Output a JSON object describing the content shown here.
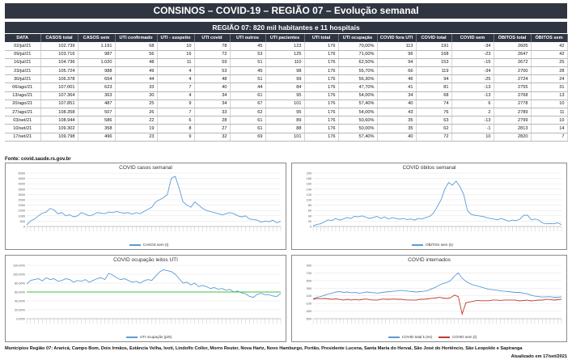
{
  "header": {
    "title": "CONSINOS – COVID-19 – REGIÃO 07 – Evolução semanal",
    "subtitle": "REGIÃO 07: 820 mil habitantes e 11 hospitais"
  },
  "table": {
    "columns": [
      "DATA",
      "CASOS total",
      "CASOS sem",
      "UTI confirmado",
      "UTI - suspeito",
      "UTI covid",
      "UTI outros",
      "UTI pacientes",
      "UTI total",
      "UTI ocupação",
      "COVID fora UTI",
      "COVID total",
      "COVID sem",
      "ÓBITOS total",
      "ÓBITOS sem"
    ],
    "rows": [
      [
        "02/jul/21",
        "102.739",
        "1.191",
        "68",
        "10",
        "78",
        "45",
        "123",
        "176",
        "70,00%",
        "113",
        "191",
        "-34",
        "2605",
        "42"
      ],
      [
        "09/jul/21",
        "103.716",
        "987",
        "56",
        "16",
        "72",
        "53",
        "125",
        "176",
        "71,00%",
        "96",
        "168",
        "-23",
        "2647",
        "42"
      ],
      [
        "16/jul/21",
        "104.736",
        "1.020",
        "48",
        "11",
        "59",
        "51",
        "110",
        "176",
        "62,50%",
        "94",
        "153",
        "-15",
        "2672",
        "25"
      ],
      [
        "23/jul/21",
        "105.724",
        "988",
        "49",
        "4",
        "53",
        "45",
        "98",
        "176",
        "55,70%",
        "66",
        "119",
        "-34",
        "2700",
        "28"
      ],
      [
        "30/jul/21",
        "106.378",
        "654",
        "44",
        "4",
        "48",
        "51",
        "99",
        "176",
        "56,30%",
        "46",
        "94",
        "-25",
        "2724",
        "24"
      ],
      [
        "06/ago/21",
        "107.001",
        "623",
        "33",
        "7",
        "40",
        "44",
        "84",
        "176",
        "47,70%",
        "41",
        "81",
        "-13",
        "2755",
        "31"
      ],
      [
        "13/ago/21",
        "107.364",
        "363",
        "30",
        "4",
        "34",
        "61",
        "95",
        "176",
        "54,00%",
        "34",
        "68",
        "-13",
        "2768",
        "13"
      ],
      [
        "20/ago/21",
        "107.851",
        "487",
        "25",
        "9",
        "34",
        "67",
        "101",
        "176",
        "57,40%",
        "40",
        "74",
        "6",
        "2778",
        "10"
      ],
      [
        "27/ago/21",
        "108.358",
        "507",
        "26",
        "7",
        "33",
        "62",
        "95",
        "176",
        "54,00%",
        "43",
        "76",
        "2",
        "2789",
        "11"
      ],
      [
        "03/set/21",
        "108.944",
        "586",
        "22",
        "6",
        "28",
        "61",
        "89",
        "176",
        "50,60%",
        "35",
        "63",
        "-13",
        "2799",
        "10"
      ],
      [
        "10/set/21",
        "109.302",
        "358",
        "19",
        "8",
        "27",
        "61",
        "88",
        "176",
        "50,00%",
        "35",
        "62",
        "-1",
        "2813",
        "14"
      ],
      [
        "17/set/21",
        "109.798",
        "496",
        "23",
        "9",
        "32",
        "69",
        "101",
        "176",
        "57,40%",
        "40",
        "72",
        "10",
        "2820",
        "7"
      ]
    ]
  },
  "source": "Fonte: covid.saude.rs.gov.br",
  "chart_data": [
    {
      "type": "line",
      "title": "COVID casos semanal",
      "ylim": [
        0,
        5000
      ],
      "yticks": [
        "0",
        "500",
        "1000",
        "1500",
        "2000",
        "2500",
        "3000",
        "3500",
        "4000",
        "4500",
        "5000"
      ],
      "series": [
        {
          "name": "CASOS sem (t)",
          "color": "#5b9bd5",
          "values": [
            150,
            520,
            700,
            1000,
            1250,
            1350,
            1700,
            1550,
            1200,
            1300,
            1000,
            1100,
            900,
            1000,
            1300,
            1150,
            1000,
            1100,
            1300,
            1250,
            1200,
            1350,
            1300,
            1400,
            1300,
            1250,
            1300,
            1150,
            1300,
            1200,
            1400,
            1600,
            1800,
            2300,
            2500,
            2700,
            3000,
            4500,
            4700,
            3600,
            2300,
            2000,
            1800,
            2300,
            2000,
            1700,
            1500,
            1400,
            1300,
            1200,
            1100,
            1200,
            1300,
            1200,
            1000,
            900,
            1000,
            700,
            650,
            600,
            400,
            500,
            450,
            580,
            350,
            500
          ]
        }
      ]
    },
    {
      "type": "line",
      "title": "COVID óbitos semanal",
      "ylim": [
        0,
        200
      ],
      "yticks": [
        "0",
        "20",
        "40",
        "60",
        "80",
        "100",
        "120",
        "140",
        "160",
        "180",
        "200"
      ],
      "series": [
        {
          "name": "ÓBITOS sem (s)",
          "color": "#5b9bd5",
          "values": [
            2,
            8,
            10,
            18,
            25,
            22,
            30,
            24,
            28,
            34,
            30,
            38,
            36,
            40,
            35,
            30,
            34,
            38,
            30,
            36,
            28,
            33,
            30,
            27,
            30,
            26,
            28,
            24,
            30,
            28,
            34,
            38,
            50,
            75,
            100,
            140,
            165,
            155,
            170,
            150,
            120,
            60,
            45,
            42,
            40,
            38,
            34,
            30,
            28,
            25,
            30,
            25,
            20,
            24,
            22,
            28,
            42,
            42,
            25,
            28,
            24,
            13,
            10,
            11,
            10,
            14,
            7
          ]
        }
      ]
    },
    {
      "type": "line",
      "title": "COVID ocupação leitos UTI",
      "ylim": [
        0,
        1.2
      ],
      "yticks": [
        "0,00%",
        "20,00%",
        "40,00%",
        "60,00%",
        "80,00%",
        "100,00%",
        "120,00%"
      ],
      "series": [
        {
          "name": "UTI ocupação (p/6)",
          "color": "#5b9bd5",
          "values": [
            0.78,
            0.86,
            0.88,
            0.9,
            0.85,
            0.92,
            0.88,
            0.9,
            0.84,
            0.86,
            0.9,
            0.88,
            0.82,
            0.86,
            0.84,
            0.88,
            0.82,
            0.86,
            0.9,
            0.92,
            0.88,
            1.02,
            0.98,
            0.92,
            0.88,
            0.9,
            0.86,
            0.82,
            0.84,
            0.8,
            0.85,
            0.88,
            0.86,
            0.96,
            1.05,
            1.1,
            1.08,
            1.06,
            1.0,
            0.9,
            0.8,
            0.82,
            0.76,
            0.8,
            0.72,
            0.75,
            0.72,
            0.68,
            0.7,
            0.66,
            0.68,
            0.64,
            0.66,
            0.6,
            0.62,
            0.58,
            0.56,
            0.5,
            0.48,
            0.55,
            0.57,
            0.54,
            0.54,
            0.51,
            0.5,
            0.57
          ]
        },
        {
          "name": "",
          "color": "#3fbf3f",
          "values": [
            0.6,
            0.6
          ]
        }
      ]
    },
    {
      "type": "line",
      "title": "COVID internados",
      "ylim": [
        -500,
        900
      ],
      "yticks": [
        "-500",
        "-300",
        "-100",
        "100",
        "300",
        "500",
        "700",
        "900"
      ],
      "series": [
        {
          "name": "COVID total k (es)",
          "color": "#5b9bd5",
          "values": [
            20,
            60,
            80,
            120,
            150,
            170,
            200,
            210,
            190,
            200,
            180,
            190,
            170,
            180,
            200,
            190,
            180,
            170,
            190,
            200,
            210,
            220,
            230,
            240,
            230,
            220,
            210,
            200,
            210,
            220,
            240,
            280,
            320,
            380,
            420,
            450,
            500,
            620,
            700,
            560,
            480,
            420,
            380,
            360,
            330,
            300,
            270,
            260,
            250,
            230,
            220,
            210,
            200,
            190,
            191,
            168,
            153,
            119,
            94,
            81,
            68,
            74,
            76,
            63,
            62,
            72
          ]
        },
        {
          "name": "COVID sem (t)",
          "color": "#c0392b",
          "values": [
            10,
            30,
            25,
            30,
            20,
            10,
            20,
            5,
            -10,
            10,
            -10,
            5,
            -10,
            10,
            15,
            -5,
            -10,
            -10,
            15,
            10,
            10,
            15,
            10,
            10,
            -5,
            -10,
            -10,
            -15,
            10,
            10,
            20,
            35,
            40,
            60,
            40,
            30,
            50,
            120,
            80,
            -380,
            -80,
            -60,
            -40,
            -20,
            -30,
            -30,
            -30,
            -10,
            -10,
            -20,
            -10,
            -10,
            -10,
            -15,
            -34,
            -23,
            -15,
            -34,
            -25,
            -13,
            -13,
            6,
            2,
            -13,
            -1,
            10
          ]
        }
      ]
    }
  ],
  "footer": {
    "municipalities": "Municípios Região 07: Araricá, Campo Bom, Dois Irmãos, Estância Velha, Ivoti, Lindolfo Collor, Morro Reuter, Nova Hartz, Novo Hamburgo, Portão, Presidente Lucena, Santa Maria do Herval, São José do Hortêncio, São Leopoldo e Sapiranga",
    "updated": "Atualizado em 17/set/2021"
  }
}
